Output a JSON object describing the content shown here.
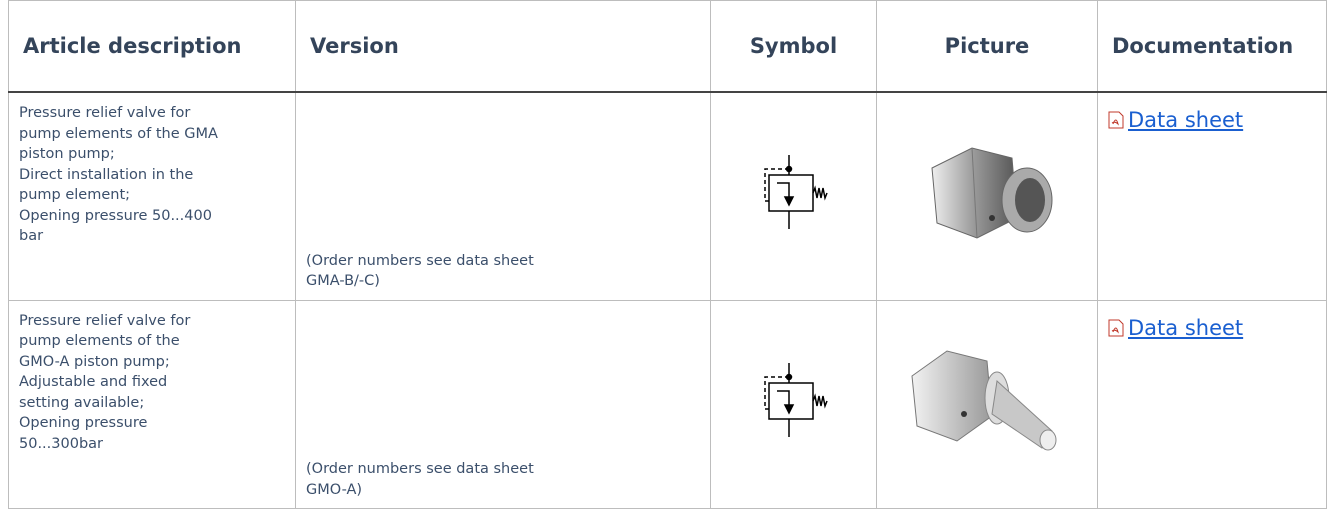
{
  "table": {
    "header": [
      "Article description",
      "Version",
      "Symbol",
      "Picture",
      "Documentation"
    ],
    "rows": [
      {
        "description": [
          "Pressure relief valve for pump elements of the GMA piston pump;",
          "Direct installation in the pump element;",
          "Opening pressure 50...400 bar"
        ],
        "version": "(Order numbers see data sheet GMA-B/-C)",
        "documentation": "Data sheet"
      },
      {
        "description": [
          "Pressure relief valve for pump elements of the GMO-A piston pump;",
          "Adjustable and fixed setting available;",
          "Opening pressure 50...300bar"
        ],
        "version": "(Order numbers see data sheet GMO-A)",
        "documentation": "Data sheet"
      }
    ]
  }
}
